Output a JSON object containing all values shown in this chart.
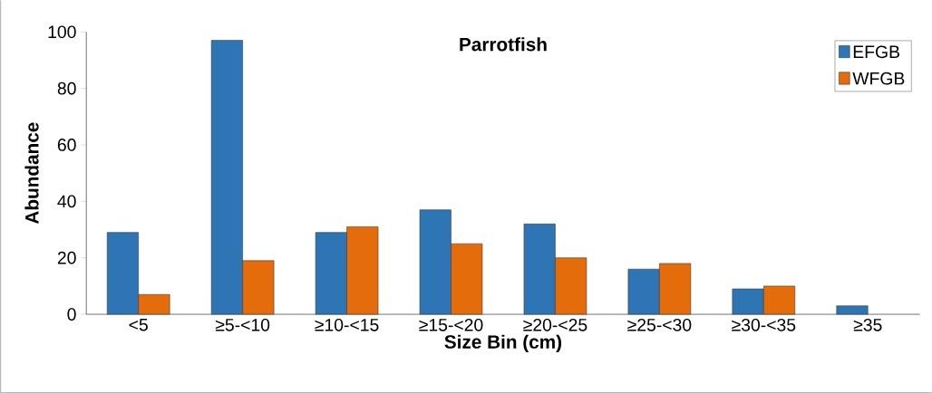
{
  "chart_data": {
    "type": "bar",
    "title": "Parrotfish",
    "xlabel": "Size Bin (cm)",
    "ylabel": "Abundance",
    "categories": [
      "<5",
      "≥5-<10",
      "≥10-<15",
      "≥15-<20",
      "≥20-<25",
      "≥25-<30",
      "≥30-<35",
      "≥35"
    ],
    "series": [
      {
        "name": "EFGB",
        "color": "#2e75b6",
        "values": [
          29,
          97,
          29,
          37,
          32,
          16,
          9,
          3
        ]
      },
      {
        "name": "WFGB",
        "color": "#e46c0a",
        "values": [
          7,
          19,
          31,
          25,
          20,
          18,
          10,
          null
        ]
      }
    ],
    "ylim": [
      0,
      100
    ],
    "yticks": [
      0,
      20,
      40,
      60,
      80,
      100
    ],
    "legend": "top right",
    "grid": false
  }
}
